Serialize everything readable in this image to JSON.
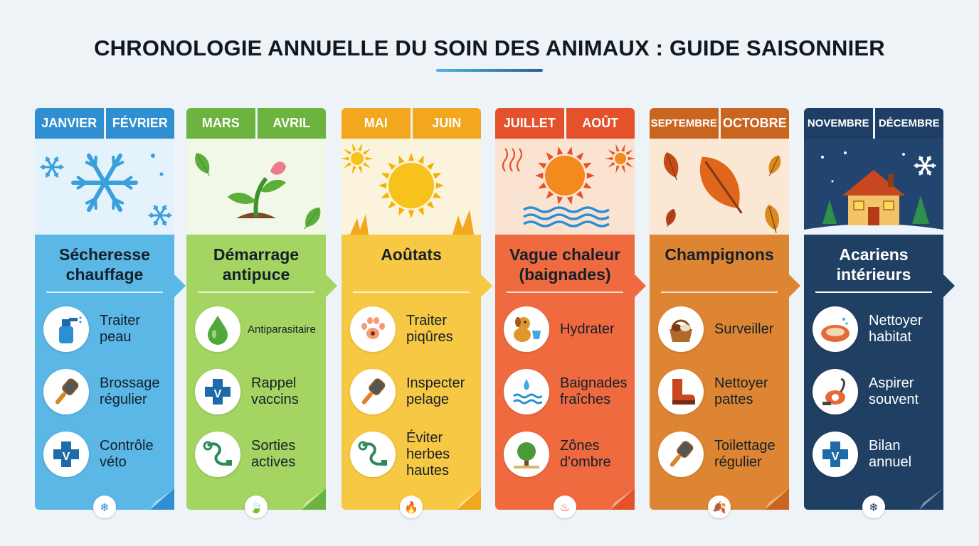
{
  "title": "CHRONOLOGIE ANNUELLE DU SOIN DES ANIMAUX : GUIDE SAISONNIER",
  "columns": [
    {
      "months": [
        "JANVIER",
        "FÉVRIER"
      ],
      "risk": [
        "Sécheresse",
        "chauffage"
      ],
      "header_color": "#2f8fd0",
      "scene_color": "#e3f2fb",
      "body_color": "#5bb7e6",
      "actions": [
        {
          "icon": "spray-bottle-icon",
          "label": [
            "Traiter",
            "peau"
          ]
        },
        {
          "icon": "brush-icon",
          "label": [
            "Brossage",
            "régulier"
          ]
        },
        {
          "icon": "vet-cross-icon",
          "label": [
            "Contrôle",
            "véto"
          ]
        }
      ]
    },
    {
      "months": [
        "MARS",
        "AVRIL"
      ],
      "risk": [
        "Démarrage",
        "antipuce"
      ],
      "header_color": "#6cb33f",
      "scene_color": "#f1f8e7",
      "body_color": "#a4d461",
      "actions": [
        {
          "icon": "drop-icon",
          "label": [
            "Antiparasitaire"
          ]
        },
        {
          "icon": "vet-cross-icon",
          "label": [
            "Rappel",
            "vaccins"
          ]
        },
        {
          "icon": "leash-icon",
          "label": [
            "Sorties",
            "actives"
          ]
        }
      ]
    },
    {
      "months": [
        "MAI",
        "JUIN"
      ],
      "risk": [
        "Aoûtats"
      ],
      "header_color": "#f2a71f",
      "scene_color": "#fcf3dc",
      "body_color": "#f7c843",
      "actions": [
        {
          "icon": "paw-tick-icon",
          "label": [
            "Traiter",
            "piqûres"
          ]
        },
        {
          "icon": "brush-icon",
          "label": [
            "Inspecter",
            "pelage"
          ]
        },
        {
          "icon": "leash-icon",
          "label": [
            "Éviter",
            "herbes",
            "hautes"
          ]
        }
      ]
    },
    {
      "months": [
        "JUILLET",
        "AOÛT"
      ],
      "risk": [
        "Vague chaleur",
        "(baignades)"
      ],
      "header_color": "#e4512a",
      "scene_color": "#fbe3d2",
      "body_color": "#ef6a3f",
      "actions": [
        {
          "icon": "dog-water-icon",
          "label": [
            "Hydrater"
          ]
        },
        {
          "icon": "water-splash-icon",
          "label": [
            "Baignades",
            "fraîches"
          ]
        },
        {
          "icon": "tree-icon",
          "label": [
            "Zônes",
            "d'ombre"
          ]
        }
      ]
    },
    {
      "months": [
        "SEPTEMBRE",
        "OCTOBRE"
      ],
      "risk": [
        "Champignons"
      ],
      "header_color": "#c9651e",
      "scene_color": "#fbe8d4",
      "body_color": "#dd8532",
      "actions": [
        {
          "icon": "mushroom-basket-icon",
          "label": [
            "Surveiller"
          ]
        },
        {
          "icon": "boot-icon",
          "label": [
            "Nettoyer",
            "pattes"
          ]
        },
        {
          "icon": "brush-icon",
          "label": [
            "Toilettage",
            "régulier"
          ]
        }
      ]
    },
    {
      "months": [
        "NOVEMBRE",
        "DÉCEMBRE"
      ],
      "risk": [
        "Acariens",
        "intérieurs"
      ],
      "header_color": "#1e3e66",
      "scene_color": "#22456f",
      "body_color": "#1f3f63",
      "actions": [
        {
          "icon": "pet-bed-icon",
          "label": [
            "Nettoyer",
            "habitat"
          ]
        },
        {
          "icon": "vacuum-icon",
          "label": [
            "Aspirer",
            "souvent"
          ]
        },
        {
          "icon": "vet-cross-icon",
          "label": [
            "Bilan",
            "annuel"
          ]
        }
      ]
    }
  ]
}
